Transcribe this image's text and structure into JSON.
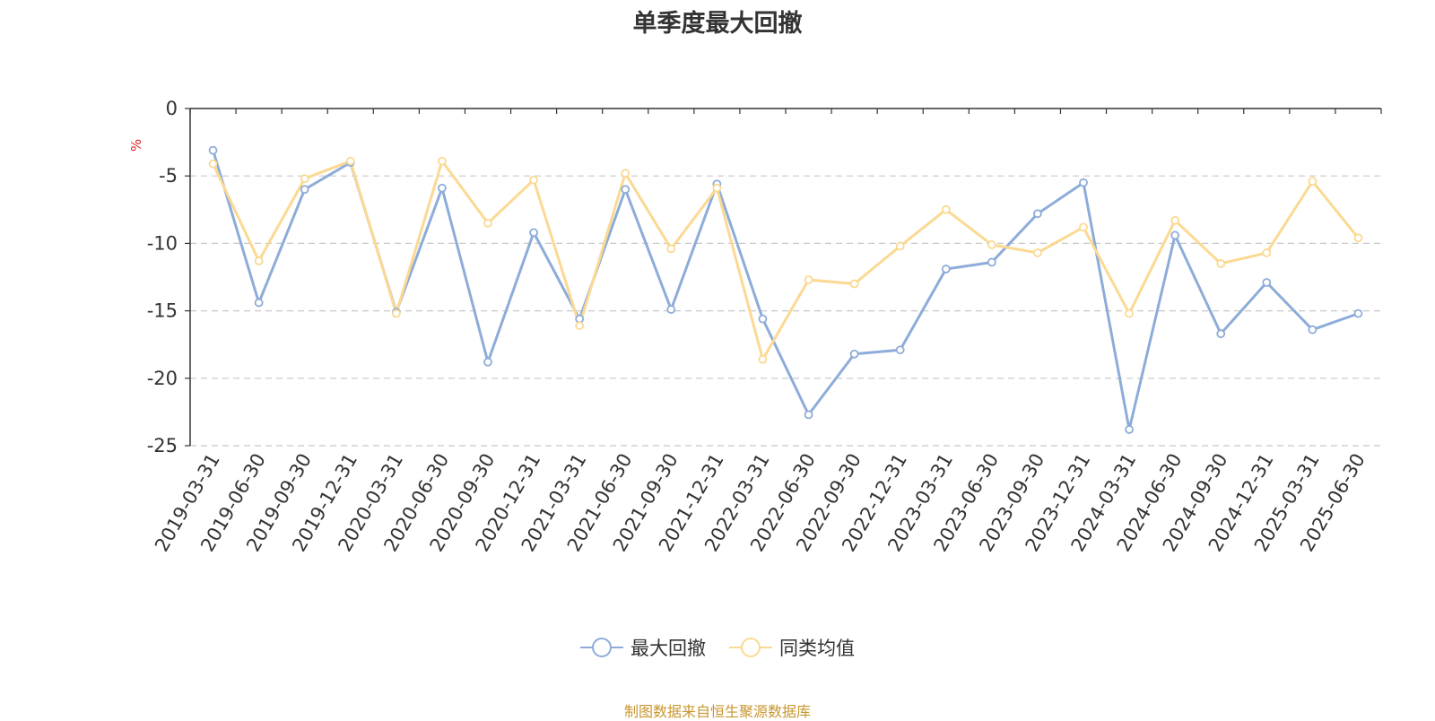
{
  "title": "单季度最大回撤",
  "source": "制图数据来自恒生聚源数据库",
  "chart_data": {
    "type": "line",
    "title": "单季度最大回撤",
    "ylabel": "%",
    "ylim": [
      -25,
      0
    ],
    "yticks": [
      0,
      -5,
      -10,
      -15,
      -20,
      -25
    ],
    "grid": true,
    "legend_position": "bottom",
    "x": [
      "2019-03-31",
      "2019-06-30",
      "2019-09-30",
      "2019-12-31",
      "2020-03-31",
      "2020-06-30",
      "2020-09-30",
      "2020-12-31",
      "2021-03-31",
      "2021-06-30",
      "2021-09-30",
      "2021-12-31",
      "2022-03-31",
      "2022-06-30",
      "2022-09-30",
      "2022-12-31",
      "2023-03-31",
      "2023-06-30",
      "2023-09-30",
      "2023-12-31",
      "2024-03-31",
      "2024-06-30",
      "2024-09-30",
      "2024-12-31",
      "2025-03-31",
      "2025-06-30"
    ],
    "series": [
      {
        "name": "最大回撤",
        "color": "#8eacd9",
        "values": [
          -3.1,
          -14.4,
          -6.0,
          -4.0,
          -15.1,
          -5.9,
          -18.8,
          -9.2,
          -15.6,
          -6.0,
          -14.9,
          -5.6,
          -15.6,
          -22.7,
          -18.2,
          -17.9,
          -11.9,
          -11.4,
          -7.8,
          -5.5,
          -23.8,
          -9.4,
          -16.7,
          -12.9,
          -16.4,
          -15.2
        ]
      },
      {
        "name": "同类均值",
        "color": "#fbd992",
        "values": [
          -4.1,
          -11.3,
          -5.2,
          -3.9,
          -15.2,
          -3.9,
          -8.5,
          -5.3,
          -16.1,
          -4.8,
          -10.4,
          -5.9,
          -18.6,
          -12.7,
          -13.0,
          -10.2,
          -7.5,
          -10.1,
          -10.7,
          -8.8,
          -15.2,
          -8.3,
          -11.5,
          -10.7,
          -5.4,
          -9.6
        ]
      }
    ]
  }
}
